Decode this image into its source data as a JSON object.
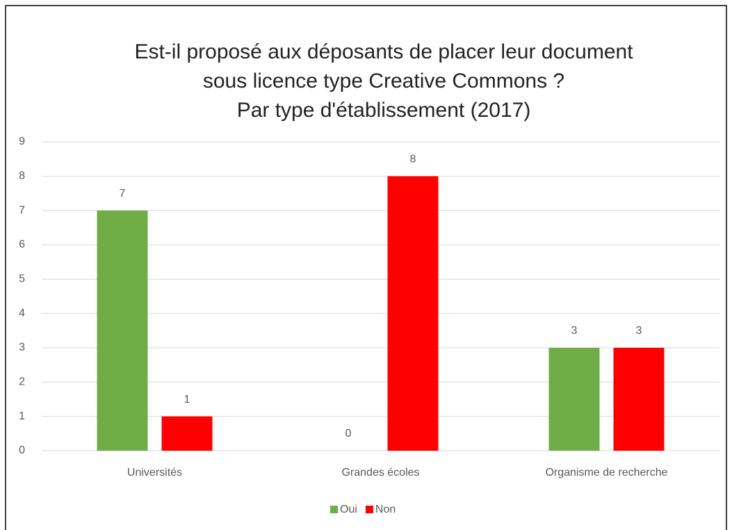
{
  "chart_data": {
    "type": "bar",
    "title": [
      "Est-il proposé aux déposants de placer leur document",
      "sous licence type Creative Commons ?",
      "Par type d'établissement (2017)"
    ],
    "categories": [
      "Universités",
      "Grandes écoles",
      "Organisme de recherche"
    ],
    "series": [
      {
        "name": "Oui",
        "color": "#70ad47",
        "values": [
          7,
          0,
          3
        ]
      },
      {
        "name": "Non",
        "color": "#ff0000",
        "values": [
          1,
          8,
          3
        ]
      }
    ],
    "ylim": [
      0,
      9
    ],
    "yticks": [
      0,
      1,
      2,
      3,
      4,
      5,
      6,
      7,
      8,
      9
    ],
    "grid": true,
    "legend": "bottom"
  }
}
